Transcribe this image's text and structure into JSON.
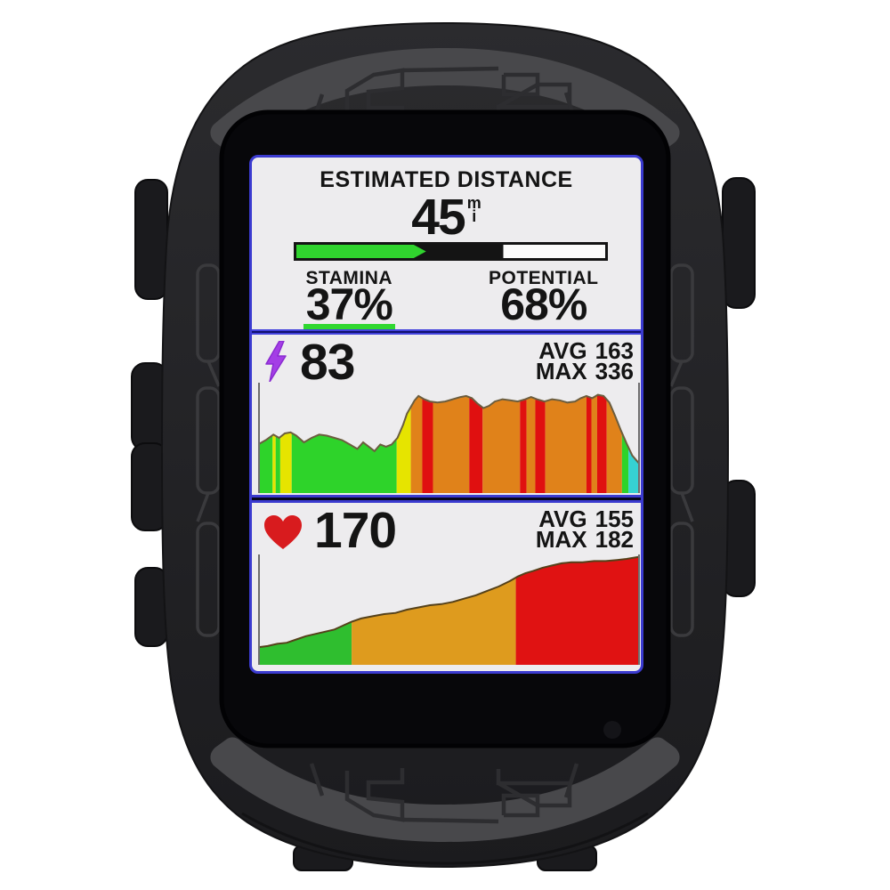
{
  "device": {
    "kind": "gps-cycling-computer-in-silicone-case",
    "case_color": "#222225",
    "pattern_band_color": "#48484b"
  },
  "colors": {
    "accent_blue": "#3b3bd0",
    "screen_bg": "#edecee",
    "ink": "#141414",
    "progress_green": "#30d42e",
    "underline_green": "#30d830",
    "bolt_purple": "#a43ee6",
    "heart_red": "#d81b1e"
  },
  "screen": {
    "distance_panel": {
      "title": "ESTIMATED DISTANCE",
      "value": "45",
      "unit_top": "m",
      "unit_bottom": "i",
      "progress": {
        "green_base_pct": 38,
        "arrow_tip_pct": 42,
        "black_end_pct": 67
      },
      "stamina_label": "STAMINA",
      "stamina_value": "37%",
      "potential_label": "POTENTIAL",
      "potential_value": "68%"
    },
    "power_panel": {
      "icon": "lightning-bolt-icon",
      "current": "83",
      "avg_label": "AVG",
      "avg_value": "163",
      "max_label": "MAX",
      "max_value": "336"
    },
    "hr_panel": {
      "icon": "heart-icon",
      "current": "170",
      "avg_label": "AVG",
      "avg_value": "155",
      "max_label": "MAX",
      "max_value": "182"
    }
  },
  "chart_data": [
    {
      "name": "power",
      "type": "area",
      "legend": "none shown",
      "axes_visible": "left and right gray tick lines only, no labels",
      "outline_color": "#6b5d3e",
      "points": [
        [
          0,
          0.44
        ],
        [
          0.02,
          0.48
        ],
        [
          0.04,
          0.53
        ],
        [
          0.055,
          0.5
        ],
        [
          0.07,
          0.54
        ],
        [
          0.085,
          0.55
        ],
        [
          0.1,
          0.52
        ],
        [
          0.12,
          0.46
        ],
        [
          0.14,
          0.5
        ],
        [
          0.16,
          0.53
        ],
        [
          0.18,
          0.52
        ],
        [
          0.2,
          0.5
        ],
        [
          0.22,
          0.48
        ],
        [
          0.24,
          0.44
        ],
        [
          0.26,
          0.4
        ],
        [
          0.275,
          0.46
        ],
        [
          0.29,
          0.42
        ],
        [
          0.305,
          0.38
        ],
        [
          0.32,
          0.44
        ],
        [
          0.335,
          0.42
        ],
        [
          0.35,
          0.44
        ],
        [
          0.365,
          0.5
        ],
        [
          0.38,
          0.62
        ],
        [
          0.39,
          0.72
        ],
        [
          0.4,
          0.78
        ],
        [
          0.41,
          0.84
        ],
        [
          0.42,
          0.88
        ],
        [
          0.435,
          0.85
        ],
        [
          0.45,
          0.83
        ],
        [
          0.47,
          0.82
        ],
        [
          0.49,
          0.83
        ],
        [
          0.51,
          0.85
        ],
        [
          0.53,
          0.87
        ],
        [
          0.545,
          0.88
        ],
        [
          0.56,
          0.86
        ],
        [
          0.575,
          0.81
        ],
        [
          0.59,
          0.77
        ],
        [
          0.605,
          0.79
        ],
        [
          0.62,
          0.83
        ],
        [
          0.64,
          0.85
        ],
        [
          0.66,
          0.84
        ],
        [
          0.68,
          0.83
        ],
        [
          0.7,
          0.85
        ],
        [
          0.715,
          0.87
        ],
        [
          0.73,
          0.85
        ],
        [
          0.75,
          0.83
        ],
        [
          0.77,
          0.85
        ],
        [
          0.79,
          0.84
        ],
        [
          0.81,
          0.82
        ],
        [
          0.83,
          0.83
        ],
        [
          0.845,
          0.86
        ],
        [
          0.86,
          0.88
        ],
        [
          0.875,
          0.86
        ],
        [
          0.89,
          0.89
        ],
        [
          0.905,
          0.88
        ],
        [
          0.92,
          0.82
        ],
        [
          0.935,
          0.7
        ],
        [
          0.95,
          0.57
        ],
        [
          0.965,
          0.45
        ],
        [
          0.98,
          0.34
        ],
        [
          1,
          0.26
        ]
      ],
      "zones": [
        [
          0,
          0.038,
          "#2ed32a"
        ],
        [
          0.038,
          0.046,
          "#e6e400"
        ],
        [
          0.046,
          0.058,
          "#2ed32a"
        ],
        [
          0.058,
          0.088,
          "#e6e400"
        ],
        [
          0.088,
          0.363,
          "#2ed32a"
        ],
        [
          0.363,
          0.4,
          "#e6e400"
        ],
        [
          0.4,
          0.43,
          "#e0821a"
        ],
        [
          0.43,
          0.458,
          "#e01010"
        ],
        [
          0.458,
          0.553,
          "#e0821a"
        ],
        [
          0.553,
          0.588,
          "#e01010"
        ],
        [
          0.588,
          0.686,
          "#e0821a"
        ],
        [
          0.686,
          0.703,
          "#e01010"
        ],
        [
          0.703,
          0.726,
          "#e0821a"
        ],
        [
          0.726,
          0.752,
          "#e01010"
        ],
        [
          0.752,
          0.86,
          "#e0821a"
        ],
        [
          0.86,
          0.873,
          "#e01010"
        ],
        [
          0.873,
          0.888,
          "#e0821a"
        ],
        [
          0.888,
          0.913,
          "#e01010"
        ],
        [
          0.913,
          0.953,
          "#e0821a"
        ],
        [
          0.953,
          0.97,
          "#2ed32a"
        ],
        [
          0.97,
          1,
          "#36d2d2"
        ]
      ]
    },
    {
      "name": "hr",
      "type": "area",
      "legend": "none shown",
      "axes_visible": "left and right gray tick lines only, no labels",
      "outline_color": "#55411a",
      "points": [
        [
          0,
          0.16
        ],
        [
          0.025,
          0.17
        ],
        [
          0.05,
          0.19
        ],
        [
          0.075,
          0.2
        ],
        [
          0.1,
          0.23
        ],
        [
          0.125,
          0.26
        ],
        [
          0.15,
          0.28
        ],
        [
          0.175,
          0.3
        ],
        [
          0.2,
          0.32
        ],
        [
          0.225,
          0.36
        ],
        [
          0.245,
          0.39
        ],
        [
          0.27,
          0.42
        ],
        [
          0.3,
          0.44
        ],
        [
          0.33,
          0.46
        ],
        [
          0.36,
          0.47
        ],
        [
          0.39,
          0.5
        ],
        [
          0.42,
          0.52
        ],
        [
          0.45,
          0.54
        ],
        [
          0.48,
          0.55
        ],
        [
          0.51,
          0.57
        ],
        [
          0.54,
          0.6
        ],
        [
          0.57,
          0.63
        ],
        [
          0.6,
          0.67
        ],
        [
          0.63,
          0.71
        ],
        [
          0.66,
          0.76
        ],
        [
          0.68,
          0.8
        ],
        [
          0.7,
          0.83
        ],
        [
          0.72,
          0.85
        ],
        [
          0.745,
          0.88
        ],
        [
          0.77,
          0.9
        ],
        [
          0.795,
          0.92
        ],
        [
          0.82,
          0.93
        ],
        [
          0.85,
          0.93
        ],
        [
          0.88,
          0.94
        ],
        [
          0.91,
          0.94
        ],
        [
          0.94,
          0.95
        ],
        [
          0.965,
          0.96
        ],
        [
          1,
          0.98
        ]
      ],
      "zones": [
        [
          0,
          0.245,
          "#2fbe2f"
        ],
        [
          0.245,
          0.675,
          "#de9b1e"
        ],
        [
          0.675,
          1,
          "#e01212"
        ]
      ]
    }
  ]
}
